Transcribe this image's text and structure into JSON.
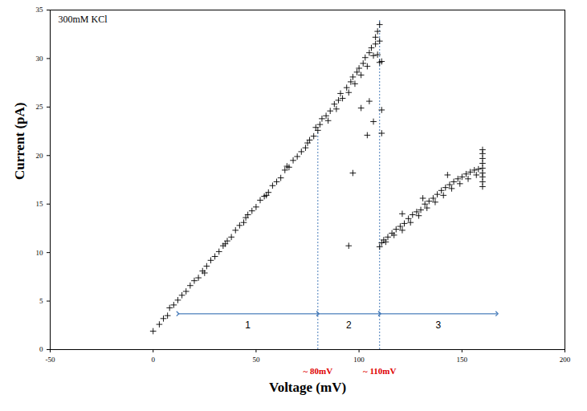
{
  "chart_data": {
    "type": "scatter",
    "annotation": "300mM KCl",
    "xlabel": "Voltage (mV)",
    "ylabel": "Current (pA)",
    "xlim": [
      -50,
      200
    ],
    "xticks": [
      -50,
      0,
      50,
      100,
      150,
      200
    ],
    "ylim": [
      0,
      35
    ],
    "yticks": [
      0,
      5,
      10,
      15,
      20,
      25,
      30,
      35
    ],
    "color": "#000000",
    "marker": "plus",
    "x": [
      0,
      3,
      5,
      7,
      8,
      10,
      12,
      14,
      16,
      18,
      20,
      22,
      24,
      25,
      26,
      28,
      30,
      32,
      34,
      35,
      36,
      38,
      40,
      42,
      44,
      45,
      46,
      48,
      50,
      52,
      54,
      55,
      56,
      58,
      60,
      62,
      64,
      65,
      66,
      68,
      70,
      72,
      74,
      75,
      76,
      78,
      79,
      80,
      81,
      82,
      84,
      85,
      86,
      88,
      89,
      90,
      91,
      92,
      94,
      95,
      96,
      97,
      98,
      99,
      100,
      101,
      102,
      103,
      104,
      105,
      106,
      107,
      108,
      108,
      109,
      110,
      110,
      109,
      97,
      95,
      104,
      101,
      107,
      110,
      111,
      111,
      111,
      105,
      110,
      111,
      112,
      113,
      114,
      116,
      117,
      118,
      120,
      121,
      122,
      124,
      125,
      126,
      128,
      129,
      130,
      132,
      133,
      134,
      136,
      137,
      138,
      140,
      141,
      142,
      144,
      145,
      146,
      148,
      149,
      150,
      152,
      153,
      154,
      156,
      157,
      158,
      160,
      160,
      160,
      160,
      160,
      160,
      160,
      160,
      160,
      121,
      131,
      143
    ],
    "values": [
      1.9,
      2.6,
      3.2,
      3.5,
      4.3,
      4.6,
      5.1,
      5.6,
      6.0,
      6.6,
      7.1,
      7.4,
      8.1,
      7.9,
      8.6,
      9.2,
      9.6,
      10.1,
      10.7,
      10.9,
      11.2,
      11.6,
      12.3,
      12.8,
      13.1,
      13.6,
      13.9,
      14.3,
      14.7,
      15.4,
      15.8,
      15.9,
      16.2,
      16.9,
      17.3,
      17.7,
      18.5,
      18.9,
      18.8,
      19.5,
      19.9,
      20.4,
      20.8,
      21.3,
      21.6,
      22.0,
      22.9,
      22.6,
      23.2,
      23.8,
      24.1,
      23.6,
      24.6,
      25.3,
      24.8,
      25.7,
      26.4,
      25.9,
      27.0,
      26.5,
      27.6,
      28.1,
      27.4,
      28.6,
      29.0,
      28.3,
      29.5,
      30.1,
      29.2,
      30.6,
      31.1,
      30.3,
      32.2,
      31.5,
      32.8,
      33.5,
      31.8,
      30.4,
      18.2,
      10.7,
      22.1,
      24.9,
      23.5,
      29.6,
      24.7,
      22.3,
      29.7,
      25.6,
      10.6,
      11.0,
      11.3,
      11.1,
      11.6,
      12.0,
      11.8,
      12.4,
      12.7,
      12.3,
      13.0,
      13.5,
      13.1,
      13.9,
      14.2,
      13.8,
      14.4,
      15.0,
      14.6,
      15.3,
      15.6,
      15.2,
      16.0,
      16.4,
      15.9,
      16.7,
      17.0,
      16.6,
      17.3,
      17.6,
      17.1,
      17.8,
      18.1,
      17.6,
      18.3,
      18.5,
      18.0,
      18.6,
      16.8,
      17.3,
      17.8,
      18.2,
      18.7,
      19.2,
      19.7,
      20.2,
      20.6,
      14.0,
      15.6,
      18.0
    ],
    "vlines": [
      {
        "x": 80,
        "y_end": 22.5,
        "label": "~ 80mV"
      },
      {
        "x": 110,
        "y_end": 34,
        "label": "~ 110mV"
      }
    ],
    "arrows": [
      {
        "label": "1",
        "x_start": 12,
        "x_end": 80,
        "y": 3.7
      },
      {
        "label": "2",
        "x_start": 80,
        "x_end": 110,
        "y": 3.7
      },
      {
        "label": "3",
        "x_start": 110,
        "x_end": 167,
        "y": 3.7
      }
    ]
  }
}
